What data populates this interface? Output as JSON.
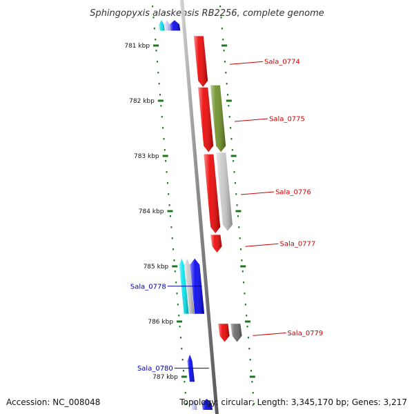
{
  "title": "Sphingopyxis alaskensis RB2256, complete genome",
  "footer": {
    "accession": "Accession: NC_008048",
    "topology": "Topology: circular; Length: 3,345,170 bp; Genes: 3,217"
  },
  "colors": {
    "forward_label": "#cc0000",
    "reverse_label": "#0000aa",
    "backbone": "#8c8c8c",
    "scale_dots": "#1a7a1a"
  },
  "scale": {
    "unit": "kbp",
    "ticks": [
      {
        "kb": 781,
        "label": "781 kbp"
      },
      {
        "kb": 782,
        "label": "782 kbp"
      },
      {
        "kb": 783,
        "label": "783 kbp"
      },
      {
        "kb": 784,
        "label": "784 kbp"
      },
      {
        "kb": 785,
        "label": "785 kbp"
      },
      {
        "kb": 786,
        "label": "786 kbp"
      },
      {
        "kb": 787,
        "label": "787 kbp"
      }
    ]
  },
  "genes": [
    {
      "id": "top-cyan",
      "label": "",
      "strand": "reverse",
      "track": "inner",
      "start": 780.54,
      "end": 780.73,
      "color": "#00e5ee"
    },
    {
      "id": "top-lavender",
      "label": "",
      "strand": "reverse",
      "track": "middle",
      "start": 780.54,
      "end": 780.73,
      "color": "#ccccff"
    },
    {
      "id": "top-blue",
      "label": "",
      "strand": "reverse",
      "track": "outer",
      "start": 780.54,
      "end": 780.73,
      "color": "#0000ee"
    },
    {
      "id": "Sala_0774",
      "label": "Sala_0774",
      "strand": "forward",
      "track": "inner",
      "start": 780.83,
      "end": 781.75,
      "color": "#ee0000"
    },
    {
      "id": "Sala_0774b",
      "label": "",
      "strand": "forward",
      "track": "inner",
      "start": 781.76,
      "end": 782.93,
      "color": "#ee0000"
    },
    {
      "id": "Sala_0775",
      "label": "Sala_0775",
      "strand": "forward",
      "track": "outer",
      "start": 781.72,
      "end": 782.93,
      "color": "#6b8e23"
    },
    {
      "id": "Sala_0776a",
      "label": "",
      "strand": "forward",
      "track": "inner",
      "start": 782.97,
      "end": 784.4,
      "color": "#ee0000"
    },
    {
      "id": "Sala_0776",
      "label": "Sala_0776",
      "strand": "forward",
      "track": "outer",
      "start": 782.94,
      "end": 784.36,
      "color": "#c8c8c8"
    },
    {
      "id": "Sala_0777",
      "label": "Sala_0777",
      "strand": "forward",
      "track": "inner",
      "start": 784.43,
      "end": 784.75,
      "color": "#ee0000"
    },
    {
      "id": "Sala_0778",
      "label": "Sala_0778",
      "strand": "reverse",
      "track": "inner",
      "start": 784.86,
      "end": 785.86,
      "color": "#00e5ee"
    },
    {
      "id": "Sala_0778b",
      "label": "",
      "strand": "reverse",
      "track": "middle",
      "start": 784.86,
      "end": 785.86,
      "color": "#c8c8c8"
    },
    {
      "id": "Sala_0778c",
      "label": "",
      "strand": "reverse",
      "track": "outer",
      "start": 784.86,
      "end": 785.86,
      "color": "#0000ee"
    },
    {
      "id": "Sala_0779",
      "label": "Sala_0779",
      "strand": "forward",
      "track": "inner",
      "start": 786.04,
      "end": 786.37,
      "color": "#ee0000"
    },
    {
      "id": "Sala_0779b",
      "label": "",
      "strand": "forward",
      "track": "outer",
      "start": 786.04,
      "end": 786.37,
      "color": "#666666"
    },
    {
      "id": "Sala_0780",
      "label": "Sala_0780",
      "strand": "reverse",
      "track": "inner",
      "start": 786.6,
      "end": 787.09,
      "color": "#0000ee"
    },
    {
      "id": "bottom-lavender",
      "label": "",
      "strand": "reverse",
      "track": "inner",
      "start": 787.4,
      "end": 787.6,
      "color": "#ccccff"
    },
    {
      "id": "bottom-blue",
      "label": "",
      "strand": "reverse",
      "track": "outer",
      "start": 787.4,
      "end": 787.6,
      "color": "#0000ee"
    }
  ]
}
